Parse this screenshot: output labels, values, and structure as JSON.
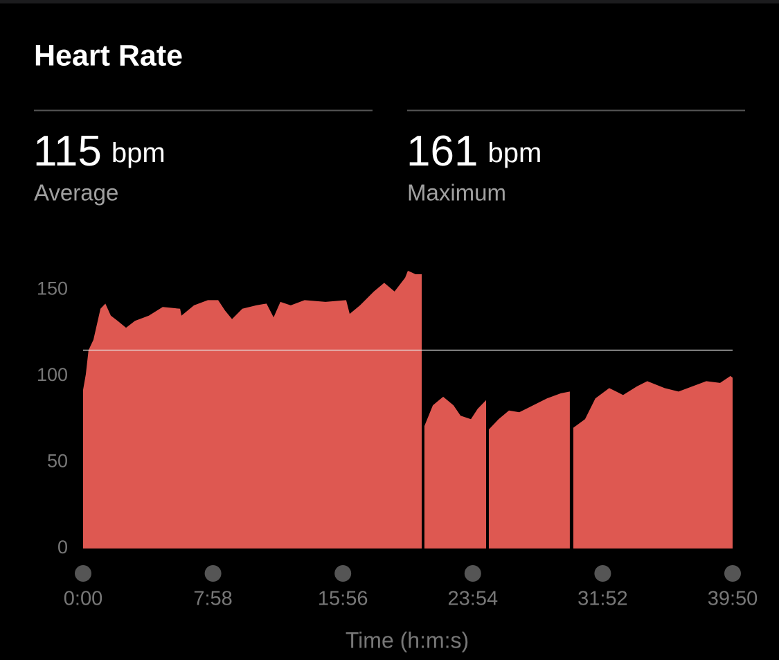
{
  "header": {
    "title": "Heart Rate"
  },
  "stats": [
    {
      "value": 115,
      "unit": "bpm",
      "label": "Average"
    },
    {
      "value": 161,
      "unit": "bpm",
      "label": "Maximum"
    }
  ],
  "chart_data": {
    "type": "area",
    "x_label": "Time (h:m:s)",
    "x": [
      0,
      10,
      20,
      38,
      64,
      82,
      102,
      127,
      158,
      191,
      242,
      293,
      357,
      362,
      408,
      459,
      497,
      522,
      548,
      586,
      637,
      675,
      701,
      726,
      764,
      815,
      892,
      968,
      981,
      1019,
      1070,
      1108,
      1146,
      1185,
      1195,
      1210,
      1223,
      1246,
      1250,
      1256,
      1287,
      1325,
      1363,
      1389,
      1427,
      1452,
      1483,
      1488,
      1493,
      1529,
      1567,
      1605,
      1656,
      1707,
      1758,
      1791,
      1798,
      1804,
      1847,
      1885,
      1936,
      1987,
      2038,
      2076,
      2140,
      2191,
      2242,
      2293,
      2344,
      2382,
      2390
    ],
    "series": [
      {
        "name": "Heart Rate",
        "color": "#de5851",
        "values": [
          92,
          101,
          115,
          121,
          139,
          142,
          135,
          132,
          128,
          132,
          135,
          140,
          139,
          135,
          141,
          144,
          144,
          138,
          133,
          139,
          141,
          142,
          134,
          143,
          141,
          144,
          143,
          144,
          136,
          141,
          149,
          154,
          149,
          157,
          161,
          160,
          159,
          159,
          null,
          71,
          83,
          88,
          83,
          77,
          75,
          81,
          86,
          null,
          69,
          75,
          80,
          79,
          83,
          87,
          90,
          91,
          null,
          70,
          75,
          87,
          93,
          89,
          94,
          97,
          93,
          91,
          94,
          97,
          96,
          100,
          99
        ]
      }
    ],
    "xlim": [
      0,
      2390
    ],
    "xticks": [
      {
        "value": 0,
        "label": "0:00"
      },
      {
        "value": 478,
        "label": "7:58"
      },
      {
        "value": 956,
        "label": "15:56"
      },
      {
        "value": 1434,
        "label": "23:54"
      },
      {
        "value": 1912,
        "label": "31:52"
      },
      {
        "value": 2390,
        "label": "39:50"
      }
    ],
    "ylim": [
      0,
      161
    ],
    "yticks": [
      0,
      50,
      100,
      150
    ]
  }
}
